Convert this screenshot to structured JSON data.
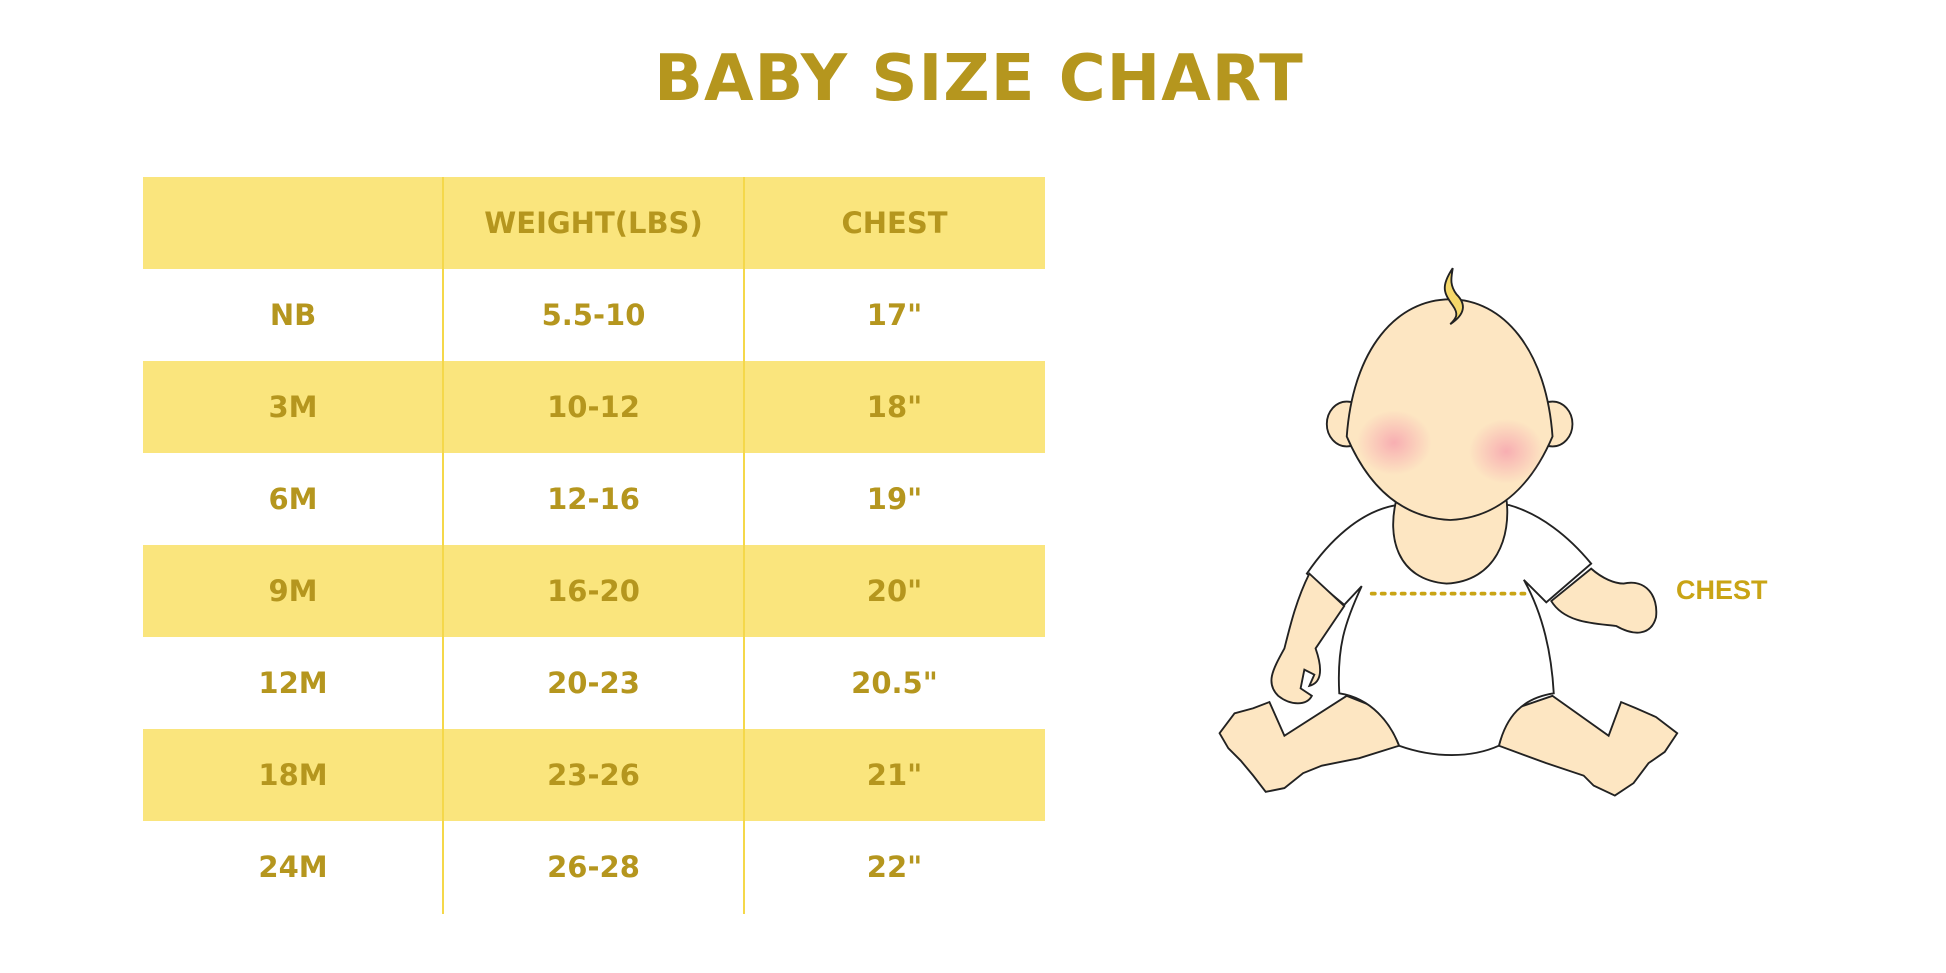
{
  "title": "BABY SIZE CHART",
  "table": {
    "headers": [
      "",
      "WEIGHT(LBS)",
      "CHEST"
    ],
    "rows": [
      [
        "NB",
        "5.5-10",
        "17\""
      ],
      [
        "3M",
        "10-12",
        "18\""
      ],
      [
        "6M",
        "12-16",
        "19\""
      ],
      [
        "9M",
        "16-20",
        "20\""
      ],
      [
        "12M",
        "20-23",
        "20.5\""
      ],
      [
        "18M",
        "23-26",
        "21\""
      ],
      [
        "24M",
        "26-28",
        "22\""
      ]
    ]
  },
  "illustration": {
    "chest_label": "CHEST"
  },
  "colors": {
    "text": "#B5961E",
    "row_fill": "#FAE57D",
    "skin": "#FDE6C2",
    "measure": "#C9A415"
  }
}
